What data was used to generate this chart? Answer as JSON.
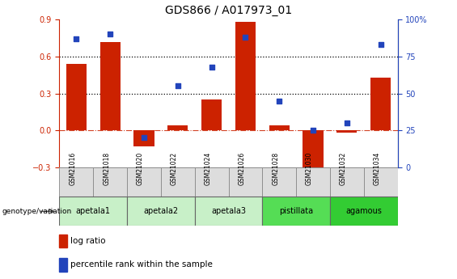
{
  "title": "GDS866 / A017973_01",
  "samples": [
    "GSM21016",
    "GSM21018",
    "GSM21020",
    "GSM21022",
    "GSM21024",
    "GSM21026",
    "GSM21028",
    "GSM21030",
    "GSM21032",
    "GSM21034"
  ],
  "log_ratio": [
    0.54,
    0.72,
    -0.13,
    0.04,
    0.25,
    0.88,
    0.04,
    -0.37,
    -0.02,
    0.43
  ],
  "percentile_rank": [
    87,
    90,
    20,
    55,
    68,
    88,
    45,
    25,
    30,
    83
  ],
  "groups_info": [
    {
      "label": "apetala1",
      "start": 0,
      "end": 1,
      "color": "#c8f0c8"
    },
    {
      "label": "apetala2",
      "start": 2,
      "end": 3,
      "color": "#c8f0c8"
    },
    {
      "label": "apetala3",
      "start": 4,
      "end": 5,
      "color": "#c8f0c8"
    },
    {
      "label": "pistillata",
      "start": 6,
      "end": 7,
      "color": "#55dd55"
    },
    {
      "label": "agamous",
      "start": 8,
      "end": 9,
      "color": "#33cc33"
    }
  ],
  "ylim_left": [
    -0.3,
    0.9
  ],
  "ylim_right": [
    0,
    100
  ],
  "yticks_left": [
    -0.3,
    0.0,
    0.3,
    0.6,
    0.9
  ],
  "yticks_right": [
    0,
    25,
    50,
    75,
    100
  ],
  "hline_values": [
    0.3,
    0.6
  ],
  "bar_color": "#cc2200",
  "dot_color": "#2244bb",
  "bg_color": "#ffffff",
  "sample_bg": "#dddddd",
  "title_fontsize": 10,
  "tick_fontsize": 7,
  "label_fontsize": 7.5
}
